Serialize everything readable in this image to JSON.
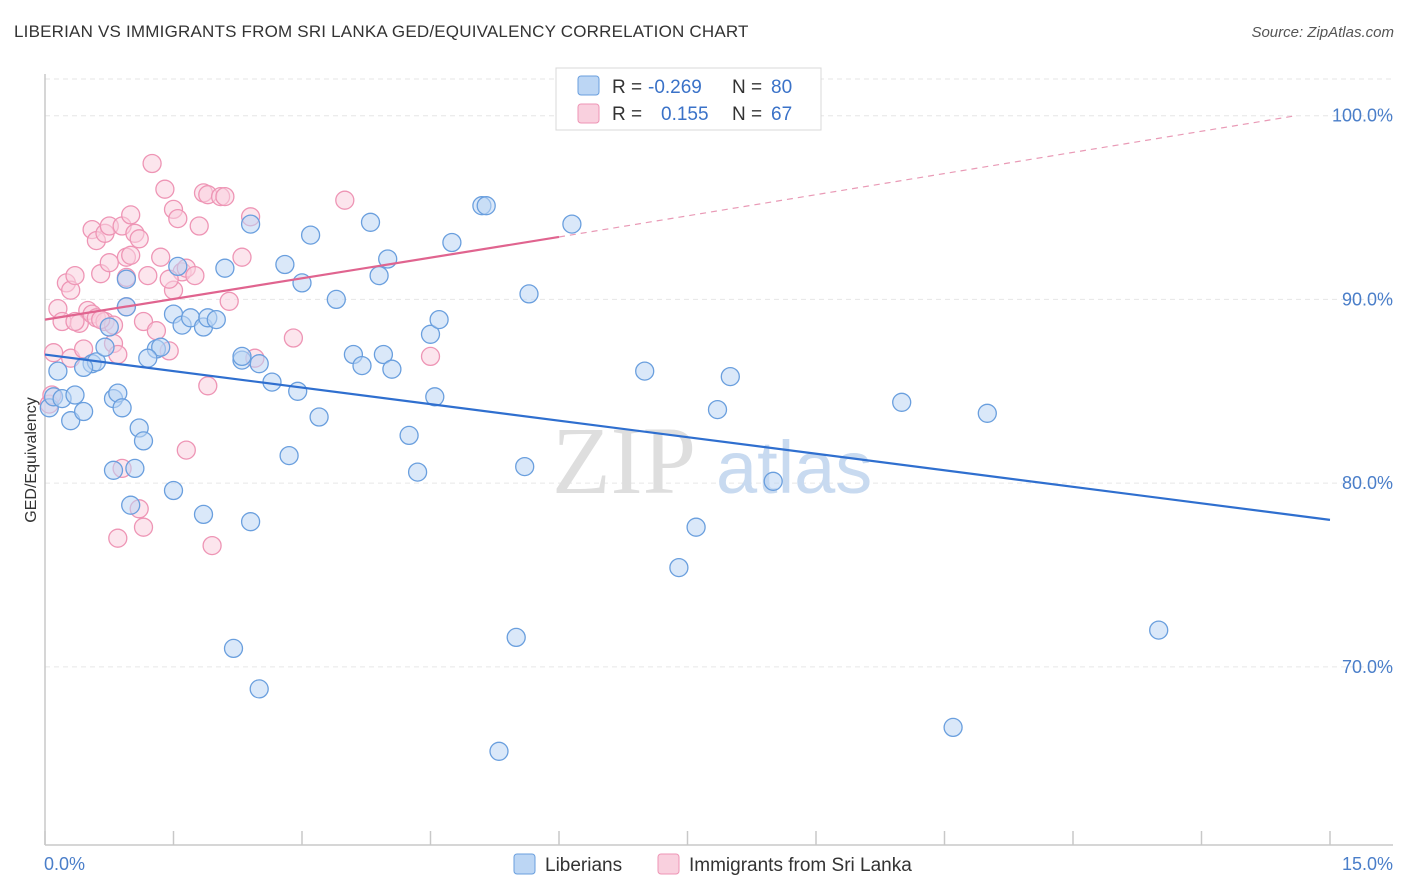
{
  "header": {
    "title": "LIBERIAN VS IMMIGRANTS FROM SRI LANKA GED/EQUIVALENCY CORRELATION CHART",
    "source": "Source: ZipAtlas.com"
  },
  "watermark": {
    "zip": "ZIP",
    "atlas": "atlas"
  },
  "legend": {
    "rows": [
      {
        "r_label": "R =",
        "r_value": "-0.269",
        "n_label": "N =",
        "n_value": "80",
        "color": "#aecdf2"
      },
      {
        "r_label": "R =",
        "r_value": "0.155",
        "n_label": "N =",
        "n_value": "67",
        "color": "#f7bcd0"
      }
    ]
  },
  "bottom_legend": {
    "items": [
      {
        "label": "Liberians",
        "color": "#aecdf2"
      },
      {
        "label": "Immigrants from Sri Lanka",
        "color": "#f7bcd0"
      }
    ]
  },
  "chart_data": {
    "type": "scatter",
    "title": "LIBERIAN VS IMMIGRANTS FROM SRI LANKA GED/EQUIVALENCY CORRELATION CHART",
    "xlabel": "",
    "ylabel": "GED/Equivalency",
    "xlim": [
      0,
      15
    ],
    "ylim": [
      60.3,
      102
    ],
    "x_tick_labels": {
      "min": "0.0%",
      "max": "15.0%"
    },
    "y_ticks": [
      {
        "value": 100,
        "label": "100.0%"
      },
      {
        "value": 90,
        "label": "90.0%"
      },
      {
        "value": 80,
        "label": "80.0%"
      },
      {
        "value": 70,
        "label": "70.0%"
      }
    ],
    "series": [
      {
        "name": "Liberians",
        "color": "#6a9fde",
        "fill": "#bcd6f4",
        "r": -0.269,
        "n": 80,
        "trend": {
          "x0": 0,
          "y0": 87.0,
          "x1": 15,
          "y1": 78.0
        },
        "points": [
          [
            0.05,
            84.1
          ],
          [
            0.1,
            84.7
          ],
          [
            0.15,
            86.1
          ],
          [
            0.2,
            84.6
          ],
          [
            0.3,
            83.4
          ],
          [
            0.35,
            84.8
          ],
          [
            0.45,
            83.9
          ],
          [
            0.55,
            86.5
          ],
          [
            0.6,
            86.6
          ],
          [
            0.7,
            87.4
          ],
          [
            0.75,
            88.5
          ],
          [
            0.8,
            84.6
          ],
          [
            0.85,
            84.9
          ],
          [
            0.9,
            84.1
          ],
          [
            0.95,
            89.6
          ],
          [
            1.0,
            78.8
          ],
          [
            0.8,
            80.7
          ],
          [
            1.05,
            80.8
          ],
          [
            1.1,
            83.0
          ],
          [
            1.15,
            82.3
          ],
          [
            0.95,
            91.1
          ],
          [
            1.3,
            87.3
          ],
          [
            1.35,
            87.4
          ],
          [
            1.5,
            89.2
          ],
          [
            1.55,
            91.8
          ],
          [
            1.6,
            88.6
          ],
          [
            1.7,
            89.0
          ],
          [
            1.5,
            79.6
          ],
          [
            1.85,
            88.5
          ],
          [
            1.9,
            89.0
          ],
          [
            1.85,
            78.3
          ],
          [
            2.0,
            88.9
          ],
          [
            2.1,
            91.7
          ],
          [
            2.2,
            71.0
          ],
          [
            2.3,
            86.7
          ],
          [
            2.3,
            86.9
          ],
          [
            2.5,
            86.5
          ],
          [
            2.4,
            77.9
          ],
          [
            2.4,
            94.1
          ],
          [
            2.5,
            68.8
          ],
          [
            2.65,
            85.5
          ],
          [
            2.8,
            91.9
          ],
          [
            2.85,
            81.5
          ],
          [
            2.95,
            85.0
          ],
          [
            3.0,
            90.9
          ],
          [
            3.1,
            93.5
          ],
          [
            3.2,
            83.6
          ],
          [
            3.4,
            90.0
          ],
          [
            3.6,
            87.0
          ],
          [
            3.7,
            86.4
          ],
          [
            3.8,
            94.2
          ],
          [
            3.9,
            91.3
          ],
          [
            3.95,
            87.0
          ],
          [
            4.0,
            92.2
          ],
          [
            4.05,
            86.2
          ],
          [
            4.25,
            82.6
          ],
          [
            4.35,
            80.6
          ],
          [
            4.5,
            88.1
          ],
          [
            4.55,
            84.7
          ],
          [
            4.6,
            88.9
          ],
          [
            4.75,
            93.1
          ],
          [
            5.1,
            95.1
          ],
          [
            5.15,
            95.1
          ],
          [
            5.3,
            65.4
          ],
          [
            5.5,
            71.6
          ],
          [
            5.6,
            80.9
          ],
          [
            5.65,
            90.3
          ],
          [
            6.15,
            94.1
          ],
          [
            7.0,
            86.1
          ],
          [
            7.4,
            75.4
          ],
          [
            7.6,
            77.6
          ],
          [
            7.85,
            84.0
          ],
          [
            8.0,
            85.8
          ],
          [
            8.5,
            80.1
          ],
          [
            10.0,
            84.4
          ],
          [
            10.6,
            66.7
          ],
          [
            11.0,
            83.8
          ],
          [
            13.0,
            72.0
          ],
          [
            0.45,
            86.3
          ],
          [
            1.2,
            86.8
          ]
        ]
      },
      {
        "name": "Immigrants from Sri Lanka",
        "color": "#ee95b5",
        "fill": "#f9d0de",
        "r": 0.155,
        "n": 67,
        "trend": {
          "x0": 0,
          "y0": 88.9,
          "x1": 6.0,
          "y1": 93.4,
          "dash_x1": 14.6,
          "dash_y1": 100.0
        },
        "points": [
          [
            0.05,
            84.3
          ],
          [
            0.08,
            84.8
          ],
          [
            0.1,
            87.1
          ],
          [
            0.15,
            89.5
          ],
          [
            0.2,
            88.8
          ],
          [
            0.25,
            90.9
          ],
          [
            0.3,
            90.5
          ],
          [
            0.3,
            86.8
          ],
          [
            0.35,
            91.3
          ],
          [
            0.4,
            88.7
          ],
          [
            0.45,
            87.3
          ],
          [
            0.5,
            89.4
          ],
          [
            0.55,
            89.2
          ],
          [
            0.6,
            89.0
          ],
          [
            0.55,
            93.8
          ],
          [
            0.6,
            93.2
          ],
          [
            0.65,
            91.4
          ],
          [
            0.7,
            93.6
          ],
          [
            0.7,
            88.8
          ],
          [
            0.75,
            94.0
          ],
          [
            0.75,
            92.0
          ],
          [
            0.8,
            88.6
          ],
          [
            0.8,
            87.6
          ],
          [
            0.85,
            87.0
          ],
          [
            0.85,
            77.0
          ],
          [
            0.9,
            80.8
          ],
          [
            0.9,
            94.0
          ],
          [
            0.95,
            91.2
          ],
          [
            0.95,
            92.3
          ],
          [
            1.0,
            94.6
          ],
          [
            1.0,
            92.4
          ],
          [
            1.05,
            93.6
          ],
          [
            1.1,
            93.3
          ],
          [
            1.1,
            78.6
          ],
          [
            1.15,
            77.6
          ],
          [
            1.15,
            88.8
          ],
          [
            1.2,
            91.3
          ],
          [
            1.25,
            97.4
          ],
          [
            1.3,
            88.3
          ],
          [
            1.35,
            92.3
          ],
          [
            1.4,
            96.0
          ],
          [
            1.45,
            87.2
          ],
          [
            1.5,
            90.5
          ],
          [
            1.5,
            94.9
          ],
          [
            1.55,
            94.4
          ],
          [
            1.6,
            91.5
          ],
          [
            1.65,
            81.8
          ],
          [
            1.65,
            91.7
          ],
          [
            1.75,
            91.3
          ],
          [
            1.8,
            94.0
          ],
          [
            1.85,
            95.8
          ],
          [
            1.9,
            85.3
          ],
          [
            1.9,
            95.7
          ],
          [
            1.95,
            76.6
          ],
          [
            2.05,
            95.6
          ],
          [
            2.1,
            95.6
          ],
          [
            2.3,
            92.3
          ],
          [
            2.4,
            94.5
          ],
          [
            2.45,
            86.8
          ],
          [
            2.9,
            87.9
          ],
          [
            3.5,
            95.4
          ],
          [
            4.5,
            86.9
          ],
          [
            0.35,
            88.8
          ],
          [
            0.95,
            89.6
          ],
          [
            1.45,
            91.1
          ],
          [
            2.15,
            89.9
          ],
          [
            0.65,
            88.9
          ]
        ]
      }
    ]
  }
}
